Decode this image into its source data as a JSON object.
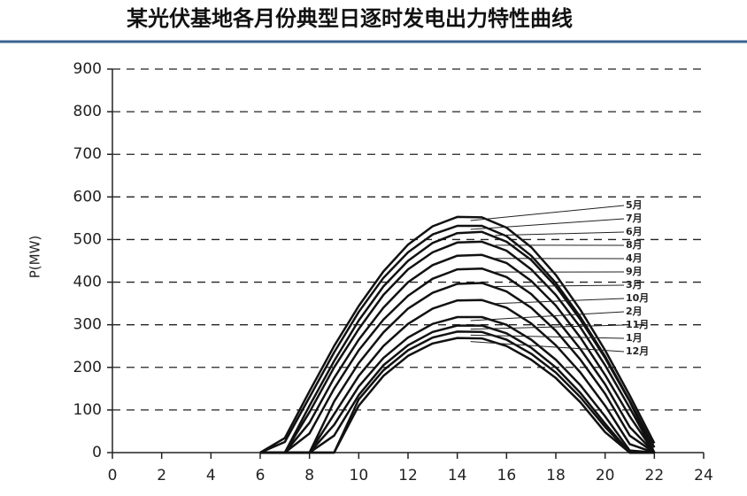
{
  "chart_data": {
    "type": "line",
    "title": "某光伏基地各月份典型日逐时发电出力特性曲线",
    "y_label": "P(MW)",
    "x": [
      6,
      7,
      8,
      9,
      10,
      11,
      12,
      13,
      14,
      15,
      16,
      17,
      18,
      19,
      20,
      21,
      22
    ],
    "xlim": [
      0,
      24
    ],
    "xticks": [
      0,
      2,
      4,
      6,
      8,
      10,
      12,
      14,
      16,
      18,
      20,
      22,
      24
    ],
    "ylim": [
      0,
      900
    ],
    "yticks": [
      0,
      100,
      200,
      300,
      400,
      500,
      600,
      700,
      800,
      900
    ],
    "grid": true,
    "series": [
      {
        "name": "5月",
        "color": "#111111",
        "values": [
          0,
          34,
          144,
          250,
          344,
          425,
          488,
          531,
          553,
          552,
          528,
          482,
          417,
          335,
          240,
          134,
          22
        ]
      },
      {
        "name": "7月",
        "color": "#111111",
        "values": [
          0,
          25,
          130,
          235,
          330,
          410,
          470,
          512,
          532,
          532,
          508,
          462,
          398,
          318,
          226,
          122,
          12
        ]
      },
      {
        "name": "6月",
        "color": "#111111",
        "values": [
          0,
          0,
          110,
          215,
          310,
          390,
          450,
          492,
          515,
          518,
          495,
          452,
          390,
          312,
          222,
          120,
          0
        ]
      },
      {
        "name": "8月",
        "color": "#111111",
        "values": [
          0,
          0,
          95,
          200,
          290,
          370,
          430,
          470,
          493,
          495,
          474,
          430,
          370,
          294,
          205,
          105,
          0
        ]
      },
      {
        "name": "4月",
        "color": "#111111",
        "values": [
          0,
          0,
          70,
          175,
          265,
          340,
          400,
          440,
          462,
          464,
          445,
          403,
          345,
          270,
          182,
          85,
          0
        ]
      },
      {
        "name": "9月",
        "color": "#111111",
        "values": [
          0,
          0,
          45,
          150,
          240,
          312,
          368,
          408,
          430,
          432,
          412,
          372,
          315,
          243,
          160,
          60,
          0
        ]
      },
      {
        "name": "3月",
        "color": "#111111",
        "values": [
          0,
          0,
          0,
          120,
          210,
          282,
          338,
          375,
          396,
          398,
          378,
          340,
          286,
          218,
          138,
          40,
          0
        ]
      },
      {
        "name": "10月",
        "color": "#111111",
        "values": [
          0,
          0,
          0,
          90,
          180,
          250,
          302,
          338,
          357,
          358,
          340,
          303,
          252,
          188,
          110,
          20,
          0
        ]
      },
      {
        "name": "2月",
        "color": "#111111",
        "values": [
          0,
          0,
          0,
          65,
          155,
          222,
          270,
          302,
          318,
          318,
          300,
          265,
          218,
          158,
          85,
          5,
          0
        ]
      },
      {
        "name": "11月",
        "color": "#111111",
        "values": [
          0,
          0,
          0,
          40,
          135,
          205,
          252,
          283,
          298,
          298,
          280,
          246,
          200,
          140,
          68,
          0,
          0
        ]
      },
      {
        "name": "1月",
        "color": "#111111",
        "values": [
          0,
          0,
          0,
          0,
          125,
          193,
          240,
          270,
          284,
          283,
          265,
          232,
          188,
          130,
          60,
          0,
          0
        ]
      },
      {
        "name": "12月",
        "color": "#111111",
        "values": [
          0,
          0,
          0,
          0,
          110,
          180,
          227,
          256,
          269,
          268,
          250,
          218,
          175,
          118,
          48,
          0,
          0
        ]
      }
    ]
  }
}
